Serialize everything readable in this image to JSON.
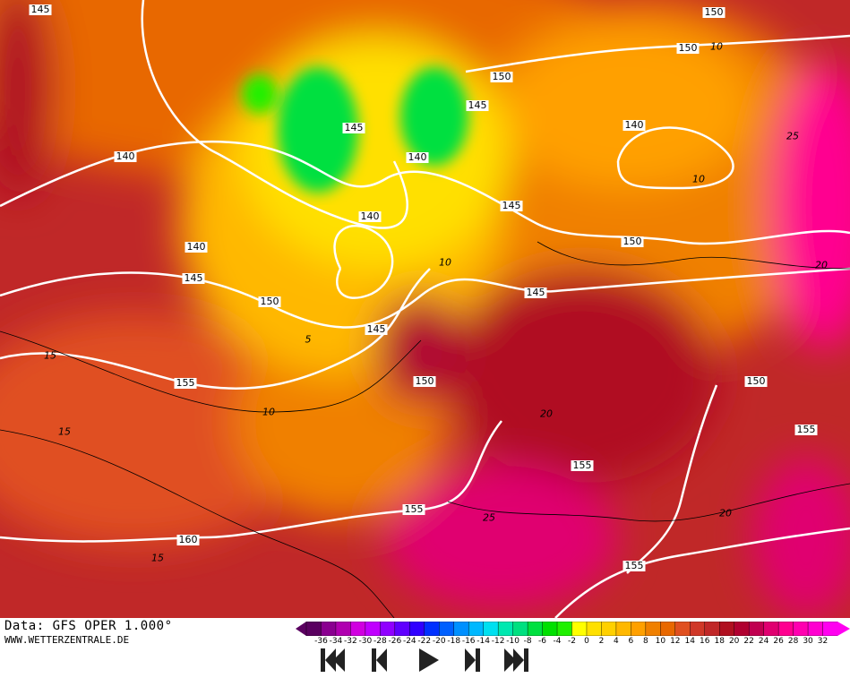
{
  "source": {
    "line1": "Data: GFS OPER 1.000°",
    "line2": "WWW.WETTERZENTRALE.DE"
  },
  "map": {
    "type": "weather map: 850 hPa temperature (shaded) with geopotential height contours",
    "height_contour_labels": [
      "145",
      "150",
      "150",
      "145",
      "140",
      "145",
      "140",
      "140",
      "145",
      "140",
      "150",
      "145",
      "140",
      "145",
      "150",
      "155",
      "150",
      "150",
      "145",
      "155",
      "150",
      "155",
      "160",
      "155",
      "155"
    ],
    "isotherm_labels": [
      "10",
      "10",
      "25",
      "20",
      "10",
      "5",
      "15",
      "15",
      "10",
      "20",
      "25",
      "20",
      "15"
    ]
  },
  "colorbar": {
    "labels": [
      "-36",
      "-34",
      "-32",
      "-30",
      "-28",
      "-26",
      "-24",
      "-22",
      "-20",
      "-18",
      "-16",
      "-14",
      "-12",
      "-10",
      "-8",
      "-6",
      "-4",
      "-2",
      "0",
      "2",
      "4",
      "6",
      "8",
      "10",
      "12",
      "14",
      "16",
      "18",
      "20",
      "22",
      "24",
      "26",
      "28",
      "30",
      "32"
    ],
    "colors": [
      "#5a0060",
      "#8a0090",
      "#b000b0",
      "#d000e0",
      "#c000ff",
      "#9000ff",
      "#6000ff",
      "#3000ff",
      "#0030ff",
      "#0060ff",
      "#0090ff",
      "#00b8ff",
      "#00e0f0",
      "#00e8b0",
      "#00e080",
      "#00e040",
      "#00e000",
      "#20f000",
      "#ffff00",
      "#ffe000",
      "#ffd000",
      "#ffb800",
      "#ffa000",
      "#f08000",
      "#e86800",
      "#e05020",
      "#d03828",
      "#c02828",
      "#b01020",
      "#b00030",
      "#c00050",
      "#e00070",
      "#ff0090",
      "#ff00b0",
      "#ff00d0",
      "#ff00f0"
    ]
  },
  "controls": [
    {
      "name": "first-frame",
      "icon": "skip-to-start-icon"
    },
    {
      "name": "previous-frame",
      "icon": "step-back-icon"
    },
    {
      "name": "play",
      "icon": "play-icon"
    },
    {
      "name": "next-frame",
      "icon": "step-forward-icon"
    },
    {
      "name": "last-frame",
      "icon": "skip-to-end-icon"
    }
  ]
}
